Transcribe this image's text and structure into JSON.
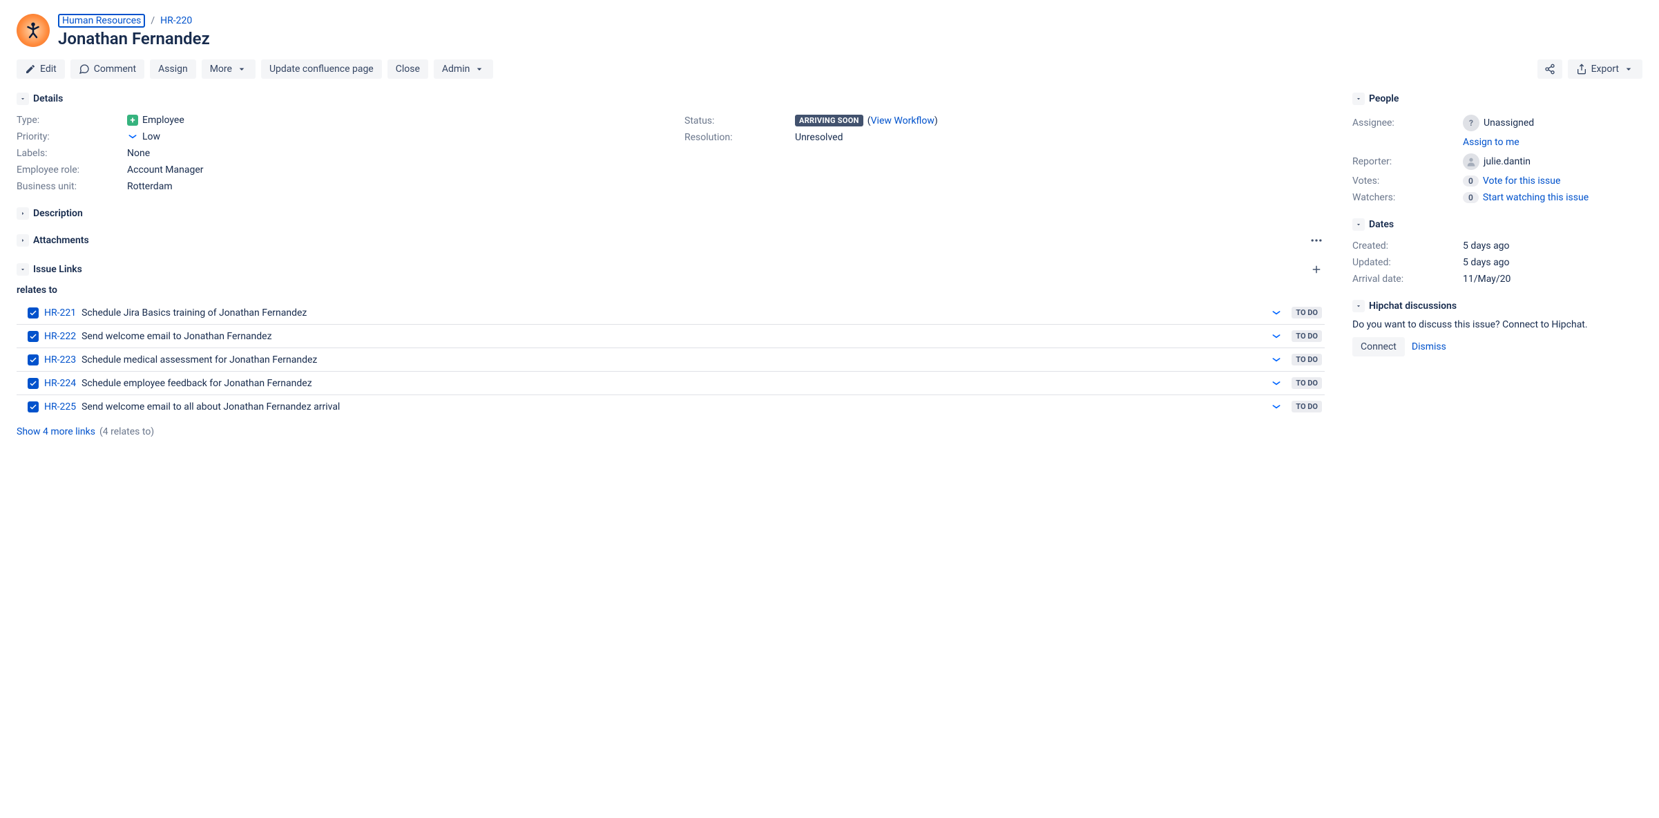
{
  "breadcrumb": {
    "project": "Human Resources",
    "issue_key": "HR-220"
  },
  "issue_title": "Jonathan Fernandez",
  "toolbar": {
    "edit": "Edit",
    "comment": "Comment",
    "assign": "Assign",
    "more": "More",
    "update_confluence": "Update confluence page",
    "close": "Close",
    "admin": "Admin",
    "export": "Export"
  },
  "sections": {
    "details": "Details",
    "description": "Description",
    "attachments": "Attachments",
    "issue_links": "Issue Links",
    "people": "People",
    "dates": "Dates",
    "hipchat": "Hipchat discussions"
  },
  "fields": {
    "type": {
      "label": "Type:",
      "value": "Employee"
    },
    "priority": {
      "label": "Priority:",
      "value": "Low"
    },
    "labels": {
      "label": "Labels:",
      "value": "None"
    },
    "employee_role": {
      "label": "Employee role:",
      "value": "Account Manager"
    },
    "business_unit": {
      "label": "Business unit:",
      "value": "Rotterdam"
    },
    "status": {
      "label": "Status:",
      "badge": "ARRIVING SOON",
      "view_workflow": "View Workflow"
    },
    "resolution": {
      "label": "Resolution:",
      "value": "Unresolved"
    }
  },
  "issue_links": {
    "relates_label": "relates to",
    "items": [
      {
        "key": "HR-221",
        "summary": "Schedule Jira Basics training of Jonathan Fernandez",
        "status": "TO DO"
      },
      {
        "key": "HR-222",
        "summary": "Send welcome email to Jonathan Fernandez",
        "status": "TO DO"
      },
      {
        "key": "HR-223",
        "summary": "Schedule medical assessment for Jonathan Fernandez",
        "status": "TO DO"
      },
      {
        "key": "HR-224",
        "summary": "Schedule employee feedback for Jonathan Fernandez",
        "status": "TO DO"
      },
      {
        "key": "HR-225",
        "summary": "Send welcome email to all about Jonathan Fernandez arrival",
        "status": "TO DO"
      }
    ],
    "show_more": "Show 4 more links",
    "show_more_count": "(4 relates to)"
  },
  "people": {
    "assignee": {
      "label": "Assignee:",
      "value": "Unassigned",
      "assign_to_me": "Assign to me"
    },
    "reporter": {
      "label": "Reporter:",
      "value": "julie.dantin"
    },
    "votes": {
      "label": "Votes:",
      "count": "0",
      "link": "Vote for this issue"
    },
    "watchers": {
      "label": "Watchers:",
      "count": "0",
      "link": "Start watching this issue"
    }
  },
  "dates": {
    "created": {
      "label": "Created:",
      "value": "5 days ago"
    },
    "updated": {
      "label": "Updated:",
      "value": "5 days ago"
    },
    "arrival": {
      "label": "Arrival date:",
      "value": "11/May/20"
    }
  },
  "hipchat": {
    "message": "Do you want to discuss this issue? Connect to Hipchat.",
    "connect": "Connect",
    "dismiss": "Dismiss"
  },
  "colors": {
    "link": "#0052CC",
    "text": "#172B4D",
    "muted": "#6B778C",
    "btn_bg": "#f4f5f7",
    "status_badge_bg": "#42526E"
  }
}
